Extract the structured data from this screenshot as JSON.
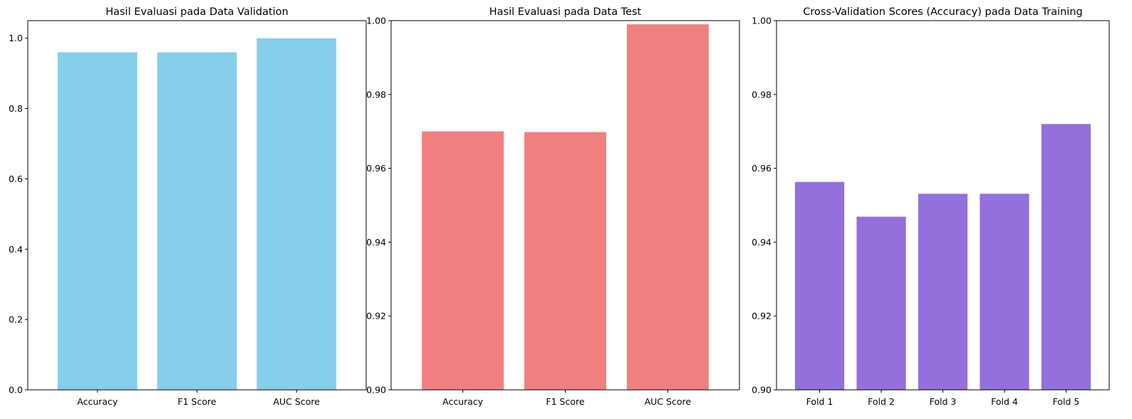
{
  "chart_data": [
    {
      "type": "bar",
      "title": "Hasil Evaluasi pada Data Validation",
      "categories": [
        "Accuracy",
        "F1 Score",
        "AUC Score"
      ],
      "values": [
        0.96,
        0.96,
        1.0
      ],
      "color": "#87CEEB",
      "ylim": [
        0,
        1.05
      ],
      "yticks": [
        "0.0",
        "0.2",
        "0.4",
        "0.6",
        "0.8",
        "1.0"
      ],
      "xlabel": "",
      "ylabel": "",
      "grid": false,
      "legend": "none"
    },
    {
      "type": "bar",
      "title": "Hasil Evaluasi pada Data Test",
      "categories": [
        "Accuracy",
        "F1 Score",
        "AUC Score"
      ],
      "values": [
        0.97,
        0.9698,
        0.999
      ],
      "color": "#F08080",
      "ylim": [
        0.9,
        1.0
      ],
      "yticks": [
        "0.90",
        "0.92",
        "0.94",
        "0.96",
        "0.98",
        "1.00"
      ],
      "xlabel": "",
      "ylabel": "",
      "grid": false,
      "legend": "none"
    },
    {
      "type": "bar",
      "title": "Cross-Validation Scores (Accuracy) pada Data Training",
      "categories": [
        "Fold 1",
        "Fold 2",
        "Fold 3",
        "Fold 4",
        "Fold 5"
      ],
      "values": [
        0.9563,
        0.9469,
        0.9531,
        0.9531,
        0.972
      ],
      "color": "#9370DB",
      "ylim": [
        0.9,
        1.0
      ],
      "yticks": [
        "0.90",
        "0.92",
        "0.94",
        "0.96",
        "0.98",
        "1.00"
      ],
      "xlabel": "",
      "ylabel": "",
      "grid": false,
      "legend": "none"
    }
  ]
}
